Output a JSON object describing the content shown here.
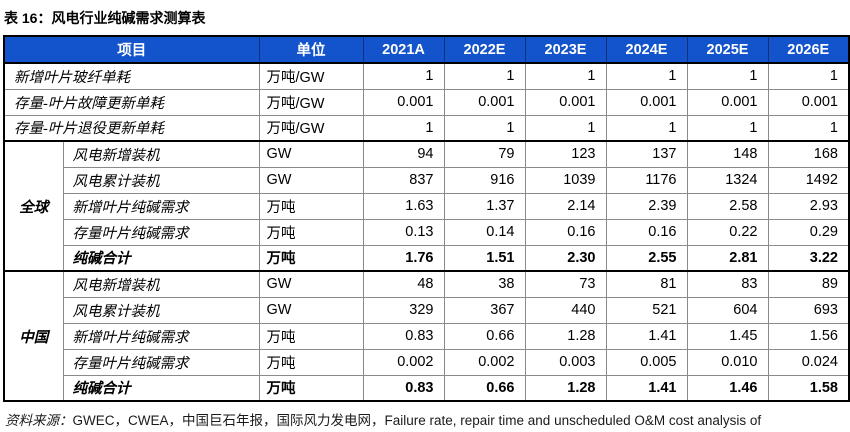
{
  "title": "表 16：风电行业纯碱需求测算表",
  "colors": {
    "header_bg": "#1353cb",
    "header_text": "#ffffff",
    "grid_line": "#8a8a8a",
    "section_line": "#000000"
  },
  "table": {
    "headers": [
      "项目",
      "单位",
      "2021A",
      "2022E",
      "2023E",
      "2024E",
      "2025E",
      "2026E"
    ],
    "top_rows": [
      {
        "label": "新增叶片玻纤单耗",
        "unit": "万吨/GW",
        "values": [
          "1",
          "1",
          "1",
          "1",
          "1",
          "1"
        ],
        "bold": false
      },
      {
        "label": "存量-叶片故障更新单耗",
        "unit": "万吨/GW",
        "values": [
          "0.001",
          "0.001",
          "0.001",
          "0.001",
          "0.001",
          "0.001"
        ],
        "bold": false
      },
      {
        "label": "存量-叶片退役更新单耗",
        "unit": "万吨/GW",
        "values": [
          "1",
          "1",
          "1",
          "1",
          "1",
          "1"
        ],
        "bold": false
      }
    ],
    "groups": [
      {
        "name": "全球",
        "rows": [
          {
            "label": "风电新增装机",
            "unit": "GW",
            "values": [
              "94",
              "79",
              "123",
              "137",
              "148",
              "168"
            ],
            "bold": false
          },
          {
            "label": "风电累计装机",
            "unit": "GW",
            "values": [
              "837",
              "916",
              "1039",
              "1176",
              "1324",
              "1492"
            ],
            "bold": false
          },
          {
            "label": "新增叶片纯碱需求",
            "unit": "万吨",
            "values": [
              "1.63",
              "1.37",
              "2.14",
              "2.39",
              "2.58",
              "2.93"
            ],
            "bold": false
          },
          {
            "label": "存量叶片纯碱需求",
            "unit": "万吨",
            "values": [
              "0.13",
              "0.14",
              "0.16",
              "0.16",
              "0.22",
              "0.29"
            ],
            "bold": false
          },
          {
            "label": "纯碱合计",
            "unit": "万吨",
            "values": [
              "1.76",
              "1.51",
              "2.30",
              "2.55",
              "2.81",
              "3.22"
            ],
            "bold": true
          }
        ]
      },
      {
        "name": "中国",
        "rows": [
          {
            "label": "风电新增装机",
            "unit": "GW",
            "values": [
              "48",
              "38",
              "73",
              "81",
              "83",
              "89"
            ],
            "bold": false
          },
          {
            "label": "风电累计装机",
            "unit": "GW",
            "values": [
              "329",
              "367",
              "440",
              "521",
              "604",
              "693"
            ],
            "bold": false
          },
          {
            "label": "新增叶片纯碱需求",
            "unit": "万吨",
            "values": [
              "0.83",
              "0.66",
              "1.28",
              "1.41",
              "1.45",
              "1.56"
            ],
            "bold": false
          },
          {
            "label": "存量叶片纯碱需求",
            "unit": "万吨",
            "values": [
              "0.002",
              "0.002",
              "0.003",
              "0.005",
              "0.010",
              "0.024"
            ],
            "bold": false
          },
          {
            "label": "纯碱合计",
            "unit": "万吨",
            "values": [
              "0.83",
              "0.66",
              "1.28",
              "1.41",
              "1.46",
              "1.58"
            ],
            "bold": true
          }
        ]
      }
    ]
  },
  "source_note": {
    "prefix": "资料来源：",
    "text": "GWEC，CWEA，中国巨石年报，国际风力发电网，Failure rate, repair time and unscheduled O&M cost analysis of"
  }
}
